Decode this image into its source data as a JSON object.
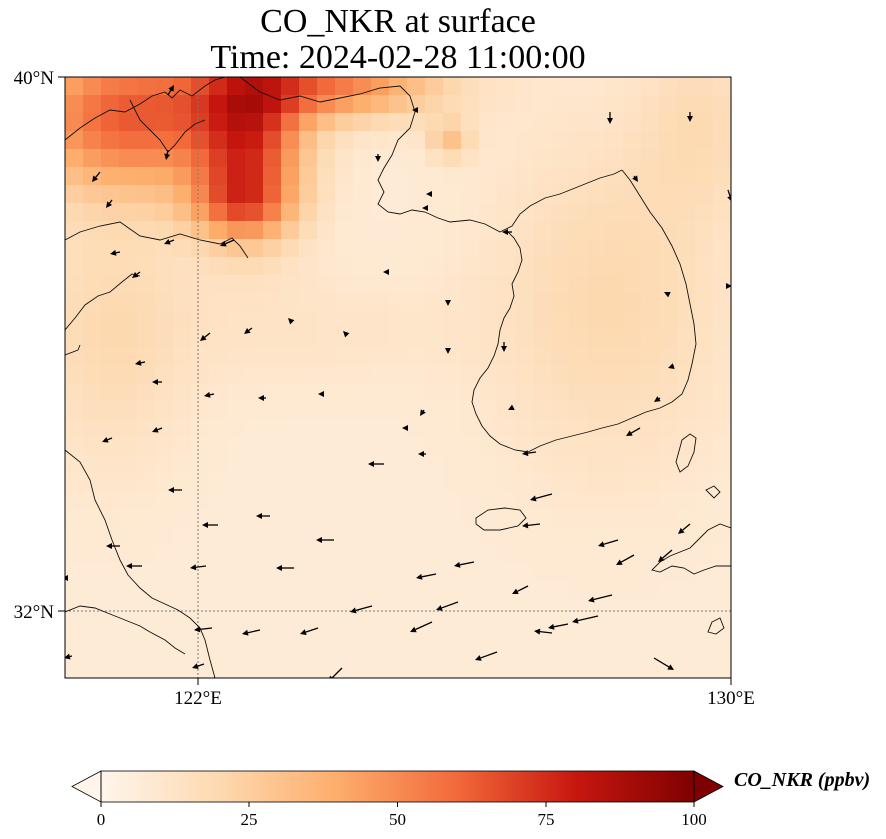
{
  "title": {
    "line1": "CO_NKR at surface",
    "line2": "Time: 2024-02-28 11:00:00"
  },
  "axes": {
    "lat_ticks": [
      "40°N",
      "32°N"
    ],
    "lon_ticks": [
      "122°E",
      "130°E"
    ]
  },
  "colorbar": {
    "label": "CO_NKR (ppbv)",
    "ticks": [
      "0",
      "25",
      "50",
      "75",
      "100"
    ],
    "colors": [
      "#fff5eb",
      "#fdd9b0",
      "#fdad6b",
      "#f2693a",
      "#c7170f",
      "#7f0000"
    ]
  },
  "map_colors": {
    "low": "#fff5eb",
    "mid": "#fdd9b0",
    "high": "#7f0000",
    "coast": "#111111",
    "gridline": "#7a7a7a"
  },
  "field": {
    "variable": "CO_NKR",
    "units": "ppbv",
    "range": [
      0,
      100
    ],
    "lon_range": [
      120,
      130
    ],
    "lat_range": [
      31,
      40
    ]
  }
}
